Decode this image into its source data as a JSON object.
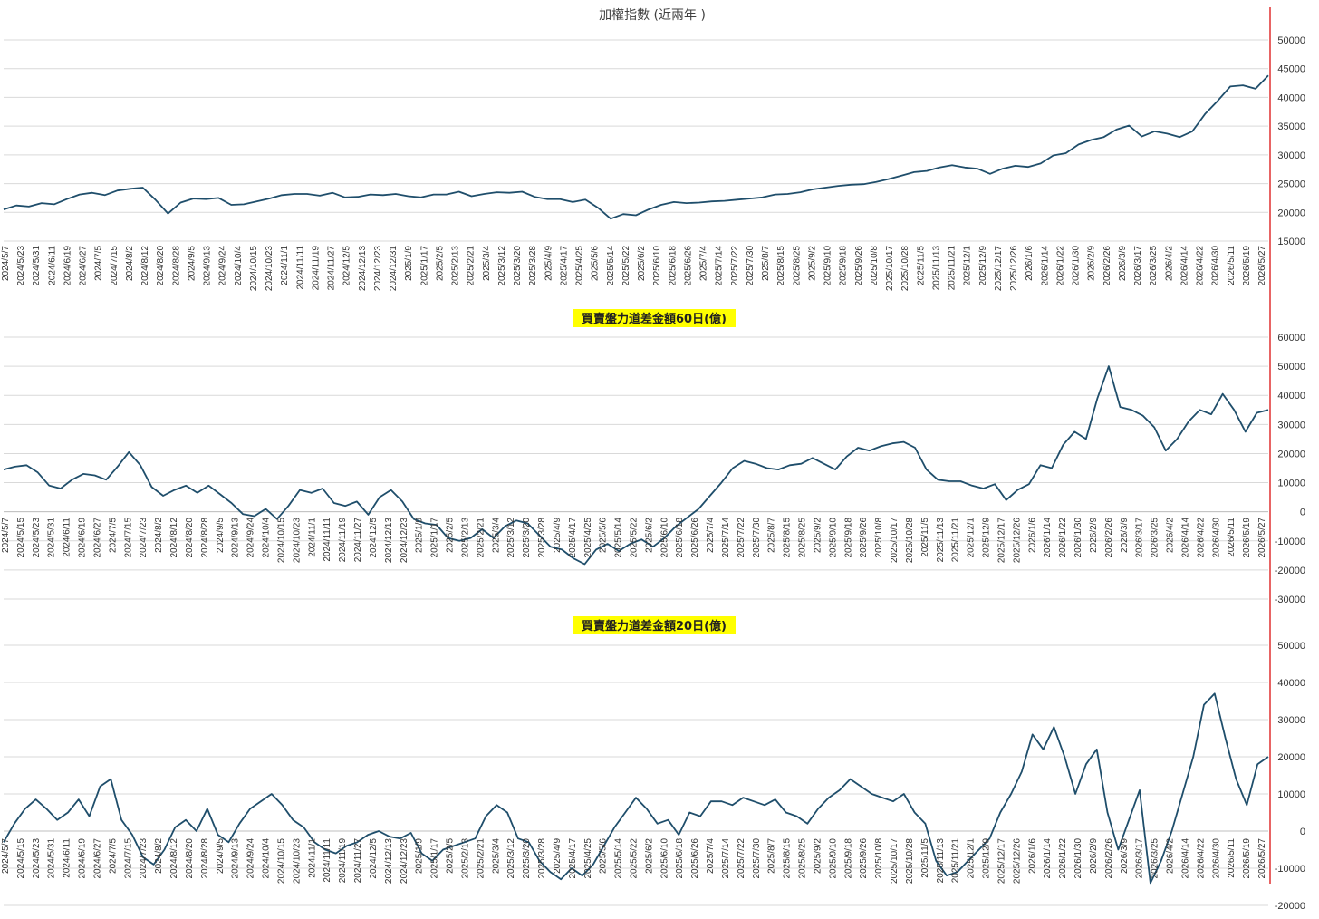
{
  "colors": {
    "line": "#1f4e6b",
    "grid": "#d9d9d9",
    "axis": "#bfbfbf",
    "divider": "#e03030",
    "highlight": "#ffff00"
  },
  "chart_data": [
    {
      "type": "line",
      "title": "加權指數 (近兩年 )",
      "ylim": [
        15000,
        50000
      ],
      "yticks": [
        15000,
        20000,
        25000,
        30000,
        35000,
        40000,
        45000,
        50000
      ],
      "ytick_labels": [
        "15000",
        "20000",
        "25000",
        "30000",
        "35000",
        "40000",
        "45000",
        "50000"
      ],
      "grid": true,
      "x_tick_labels": [
        "2024/5/7",
        "2024/5/23",
        "2024/5/31",
        "2024/6/11",
        "2024/6/19",
        "2024/6/27",
        "2024/7/5",
        "2024/7/15",
        "2024/8/2",
        "2024/8/12",
        "2024/8/20",
        "2024/8/28",
        "2024/9/5",
        "2024/9/13",
        "2024/9/24",
        "2024/10/4",
        "2024/10/15",
        "2024/10/23",
        "2024/11/1",
        "2024/11/11",
        "2024/11/19",
        "2024/11/27",
        "2024/12/5",
        "2024/12/13",
        "2024/12/23",
        "2024/12/31",
        "2025/1/9",
        "2025/1/17",
        "2025/2/5",
        "2025/2/13",
        "2025/2/21",
        "2025/3/4",
        "2025/3/12",
        "2025/3/20",
        "2025/3/28",
        "2025/4/9",
        "2025/4/17",
        "2025/4/25",
        "2025/5/6",
        "2025/5/14",
        "2025/5/22",
        "2025/6/2",
        "2025/6/10",
        "2025/6/18",
        "2025/6/26",
        "2025/7/4",
        "2025/7/14",
        "2025/7/22",
        "2025/7/30",
        "2025/8/7",
        "2025/8/15",
        "2025/8/25",
        "2025/9/2",
        "2025/9/10",
        "2025/9/18",
        "2025/9/26",
        "2025/10/8",
        "2025/10/17",
        "2025/10/28",
        "2025/11/5",
        "2025/11/13",
        "2025/11/21",
        "2025/12/1",
        "2025/12/9",
        "2025/12/17",
        "2025/12/26",
        "2026/1/6",
        "2026/1/14",
        "2026/1/22",
        "2026/1/30",
        "2026/2/9",
        "2026/2/26",
        "2026/3/9",
        "2026/3/17",
        "2026/3/25",
        "2026/4/2",
        "2026/4/14",
        "2026/4/22",
        "2026/4/30",
        "2026/5/11",
        "2026/5/19",
        "2026/5/27"
      ],
      "series": [
        {
          "values": [
            20500,
            21200,
            21000,
            21600,
            21400,
            22300,
            23100,
            23400,
            23000,
            23800,
            24100,
            24300,
            22200,
            19800,
            21700,
            22400,
            22300,
            22500,
            21300,
            21400,
            21900,
            22400,
            23000,
            23200,
            23200,
            22900,
            23400,
            22600,
            22700,
            23100,
            23000,
            23200,
            22800,
            22600,
            23100,
            23100,
            23600,
            22800,
            23200,
            23500,
            23400,
            23600,
            22700,
            22300,
            22300,
            21800,
            22200,
            20800,
            18900,
            19700,
            19500,
            20500,
            21300,
            21800,
            21600,
            21700,
            21900,
            22000,
            22200,
            22400,
            22600,
            23100,
            23200,
            23500,
            24000,
            24300,
            24600,
            24800,
            24900,
            25300,
            25800,
            26400,
            27000,
            27200,
            27800,
            28200,
            27800,
            27600,
            26700,
            27600,
            28100,
            27900,
            28500,
            29900,
            30300,
            31800,
            32600,
            33100,
            34400,
            35100,
            33200,
            34100,
            33700,
            33100,
            34100,
            37100,
            39400,
            41900,
            42100,
            41500,
            43800
          ]
        }
      ]
    },
    {
      "type": "line",
      "title": "買賣盤力道差金額60日(億)",
      "ylim": [
        -30000,
        60000
      ],
      "yticks": [
        -30000,
        -20000,
        -10000,
        0,
        10000,
        20000,
        30000,
        40000,
        50000,
        60000
      ],
      "ytick_labels": [
        "-30000",
        "-20000",
        "-10000",
        "0",
        "10000",
        "20000",
        "30000",
        "40000",
        "50000",
        "60000"
      ],
      "grid": true,
      "x_tick_labels": [
        "2024/5/7",
        "2024/5/15",
        "2024/5/23",
        "2024/5/31",
        "2024/6/11",
        "2024/6/19",
        "2024/6/27",
        "2024/7/5",
        "2024/7/15",
        "2024/7/23",
        "2024/8/2",
        "2024/8/12",
        "2024/8/20",
        "2024/8/28",
        "2024/9/5",
        "2024/9/13",
        "2024/9/24",
        "2024/10/4",
        "2024/10/15",
        "2024/10/23",
        "2024/11/1",
        "2024/11/11",
        "2024/11/19",
        "2024/11/27",
        "2024/12/5",
        "2024/12/13",
        "2024/12/23",
        "2025/1/9",
        "2025/1/17",
        "2025/2/5",
        "2025/2/13",
        "2025/2/21",
        "2025/3/4",
        "2025/3/12",
        "2025/3/20",
        "2025/3/28",
        "2025/4/9",
        "2025/4/17",
        "2025/4/25",
        "2025/5/6",
        "2025/5/14",
        "2025/5/22",
        "2025/6/2",
        "2025/6/10",
        "2025/6/18",
        "2025/6/26",
        "2025/7/4",
        "2025/7/14",
        "2025/7/22",
        "2025/7/30",
        "2025/8/7",
        "2025/8/15",
        "2025/8/25",
        "2025/9/2",
        "2025/9/10",
        "2025/9/18",
        "2025/9/26",
        "2025/10/8",
        "2025/10/17",
        "2025/10/28",
        "2025/11/5",
        "2025/11/13",
        "2025/11/21",
        "2025/12/1",
        "2025/12/9",
        "2025/12/17",
        "2025/12/26",
        "2026/1/6",
        "2026/1/14",
        "2026/1/22",
        "2026/1/30",
        "2026/2/9",
        "2026/2/26",
        "2026/3/9",
        "2026/3/17",
        "2026/3/25",
        "2026/4/2",
        "2026/4/14",
        "2026/4/22",
        "2026/4/30",
        "2026/5/11",
        "2026/5/19",
        "2026/5/27"
      ],
      "series": [
        {
          "values": [
            14500,
            15500,
            16000,
            13500,
            9000,
            8000,
            11000,
            13000,
            12500,
            11000,
            15500,
            20500,
            16000,
            8500,
            5500,
            7500,
            9000,
            6500,
            9000,
            6000,
            3000,
            -800,
            -1500,
            1000,
            -2500,
            2000,
            7500,
            6500,
            8000,
            3000,
            2000,
            3500,
            -1000,
            5000,
            7500,
            3500,
            -2500,
            -4000,
            -4500,
            -9000,
            -10000,
            -9000,
            -6000,
            -9000,
            -5000,
            -3000,
            -4000,
            -8000,
            -12000,
            -13000,
            -16000,
            -18000,
            -13000,
            -11000,
            -13500,
            -11000,
            -9500,
            -12000,
            -9000,
            -5000,
            -2000,
            1000,
            5500,
            10000,
            15000,
            17500,
            16500,
            15000,
            14500,
            16000,
            16500,
            18500,
            16500,
            14500,
            19000,
            22000,
            21000,
            22500,
            23500,
            24000,
            22000,
            14500,
            11000,
            10500,
            10500,
            9000,
            8000,
            9500,
            4000,
            7500,
            9500,
            16000,
            15000,
            23000,
            27500,
            25000,
            39000,
            50000,
            36000,
            35000,
            33000,
            29000,
            21000,
            25000,
            31000,
            35000,
            33500,
            40500,
            35000,
            27500,
            34000,
            35000
          ]
        }
      ]
    },
    {
      "type": "line",
      "title": "買賣盤力道差金額20日(億)",
      "ylim": [
        -20000,
        50000
      ],
      "yticks": [
        -20000,
        -10000,
        0,
        10000,
        20000,
        30000,
        40000,
        50000
      ],
      "ytick_labels": [
        "-20000",
        "-10000",
        "0",
        "10000",
        "20000",
        "30000",
        "40000",
        "50000"
      ],
      "grid": true,
      "x_tick_labels": [
        "2024/5/7",
        "2024/5/15",
        "2024/5/23",
        "2024/5/31",
        "2024/6/11",
        "2024/6/19",
        "2024/6/27",
        "2024/7/5",
        "2024/7/15",
        "2024/7/23",
        "2024/8/2",
        "2024/8/12",
        "2024/8/20",
        "2024/8/28",
        "2024/9/5",
        "2024/9/13",
        "2024/9/24",
        "2024/10/4",
        "2024/10/15",
        "2024/10/23",
        "2024/11/1",
        "2024/11/11",
        "2024/11/19",
        "2024/11/27",
        "2024/12/5",
        "2024/12/13",
        "2024/12/23",
        "2025/1/9",
        "2025/1/17",
        "2025/2/5",
        "2025/2/13",
        "2025/2/21",
        "2025/3/4",
        "2025/3/12",
        "2025/3/20",
        "2025/3/28",
        "2025/4/9",
        "2025/4/17",
        "2025/4/25",
        "2025/5/6",
        "2025/5/14",
        "2025/5/22",
        "2025/6/2",
        "2025/6/10",
        "2025/6/18",
        "2025/6/26",
        "2025/7/4",
        "2025/7/14",
        "2025/7/22",
        "2025/7/30",
        "2025/8/7",
        "2025/8/15",
        "2025/8/25",
        "2025/9/2",
        "2025/9/10",
        "2025/9/18",
        "2025/9/26",
        "2025/10/8",
        "2025/10/17",
        "2025/10/28",
        "2025/11/5",
        "2025/11/13",
        "2025/11/21",
        "2025/12/1",
        "2025/12/9",
        "2025/12/17",
        "2025/12/26",
        "2026/1/6",
        "2026/1/14",
        "2026/1/22",
        "2026/1/30",
        "2026/2/9",
        "2026/2/26",
        "2026/3/9",
        "2026/3/17",
        "2026/3/25",
        "2026/4/2",
        "2026/4/14",
        "2026/4/22",
        "2026/4/30",
        "2026/5/11",
        "2026/5/19",
        "2026/5/27"
      ],
      "series": [
        {
          "values": [
            -3000,
            2000,
            6000,
            8500,
            6000,
            3000,
            5000,
            8500,
            4000,
            12000,
            14000,
            3000,
            -1000,
            -7000,
            -9000,
            -5000,
            1000,
            3000,
            0,
            6000,
            -1000,
            -3000,
            2000,
            6000,
            8000,
            10000,
            7000,
            3000,
            1000,
            -3000,
            -5000,
            -6000,
            -4000,
            -3000,
            -1000,
            0,
            -1500,
            -2000,
            -500,
            -6000,
            -8000,
            -5000,
            -4000,
            -3000,
            -2000,
            4000,
            7000,
            5000,
            -2000,
            -3000,
            -8000,
            -11000,
            -13000,
            -10000,
            -12000,
            -9000,
            -4000,
            1000,
            5000,
            9000,
            6000,
            2000,
            3000,
            -1000,
            5000,
            4000,
            8000,
            8000,
            7000,
            9000,
            8000,
            7000,
            8500,
            5000,
            4000,
            2000,
            6000,
            9000,
            11000,
            14000,
            12000,
            10000,
            9000,
            8000,
            10000,
            5000,
            2000,
            -8000,
            -12000,
            -11000,
            -8000,
            -5000,
            -2000,
            5000,
            10000,
            16000,
            26000,
            22000,
            28000,
            20000,
            10000,
            18000,
            22000,
            5000,
            -5000,
            3000,
            11000,
            -14000,
            -8000,
            0,
            10000,
            20000,
            34000,
            37000,
            25000,
            14000,
            7000,
            18000,
            20000
          ]
        }
      ]
    }
  ]
}
